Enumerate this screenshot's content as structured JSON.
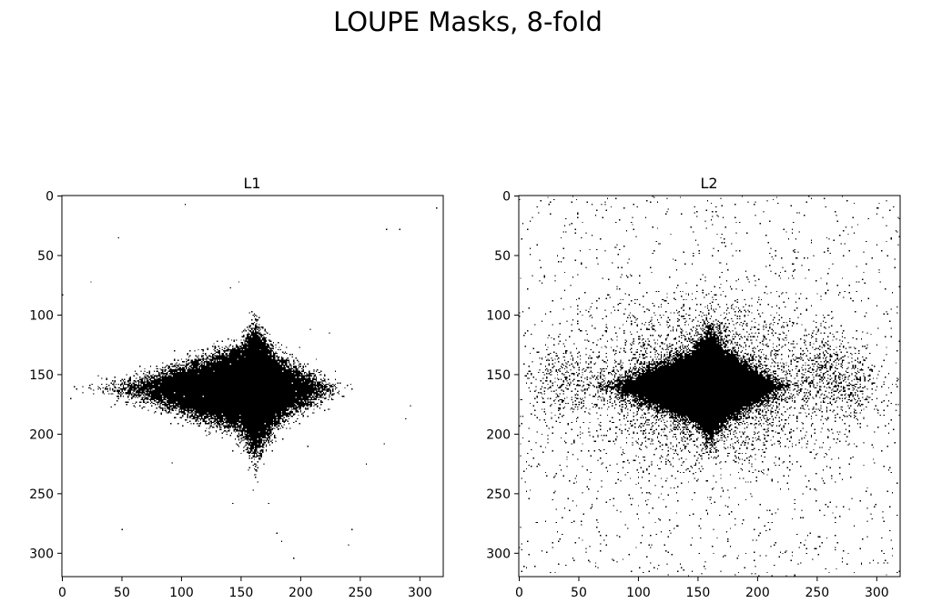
{
  "figure": {
    "title": "LOUPE Masks, 8-fold"
  },
  "chart_data": [
    {
      "type": "heatmap",
      "title": "L1",
      "colormap": {
        "sampled": "#000000",
        "unsampled": "#ffffff"
      },
      "grid": false,
      "xlim": [
        0,
        320
      ],
      "ylim": [
        320,
        0
      ],
      "xticks": [
        0,
        50,
        100,
        150,
        200,
        250,
        300
      ],
      "yticks": [
        0,
        50,
        100,
        150,
        200,
        250,
        300
      ],
      "mask": {
        "description": "dense diamond-shaped sampled region near image center, very few isolated samples elsewhere",
        "center": [
          160,
          162
        ],
        "core_extent_x": [
          40,
          230
        ],
        "core_extent_y": [
          105,
          225
        ],
        "outlier_samples": [
          [
            103,
            7
          ],
          [
            47,
            35
          ],
          [
            24,
            72
          ],
          [
            0,
            83
          ],
          [
            141,
            77
          ],
          [
            148,
            72
          ],
          [
            283,
            28
          ],
          [
            272,
            28
          ],
          [
            314,
            10
          ],
          [
            208,
            112
          ],
          [
            224,
            115
          ],
          [
            292,
            176
          ],
          [
            288,
            187
          ],
          [
            270,
            208
          ],
          [
            206,
            210
          ],
          [
            92,
            224
          ],
          [
            143,
            258
          ],
          [
            173,
            258
          ],
          [
            50,
            280
          ],
          [
            180,
            283
          ],
          [
            184,
            290
          ],
          [
            243,
            280
          ],
          [
            240,
            293
          ],
          [
            194,
            304
          ],
          [
            255,
            225
          ],
          [
            30,
            151
          ]
        ]
      }
    },
    {
      "type": "heatmap",
      "title": "L2",
      "colormap": {
        "sampled": "#000000",
        "unsampled": "#ffffff"
      },
      "grid": false,
      "xlim": [
        0,
        320
      ],
      "ylim": [
        320,
        0
      ],
      "xticks": [
        0,
        50,
        100,
        150,
        200,
        250,
        300
      ],
      "yticks": [
        0,
        50,
        100,
        150,
        200,
        250,
        300
      ],
      "mask": {
        "description": "dense central sampled core with wide diffuse halo and scattered samples across the whole k-space, extra clusters near left and right edges at the center row",
        "center": [
          160,
          160
        ],
        "core_extent_x": [
          60,
          225
        ],
        "core_extent_y": [
          108,
          205
        ],
        "side_clusters": [
          [
            35,
            155
          ],
          [
            280,
            160
          ],
          [
            255,
            145
          ]
        ],
        "edge_samples": [
          [
            300,
            10
          ],
          [
            300,
            15
          ],
          [
            305,
            18
          ],
          [
            305,
            265
          ],
          [
            305,
            270
          ],
          [
            0,
            295
          ],
          [
            5,
            240
          ]
        ]
      }
    }
  ]
}
